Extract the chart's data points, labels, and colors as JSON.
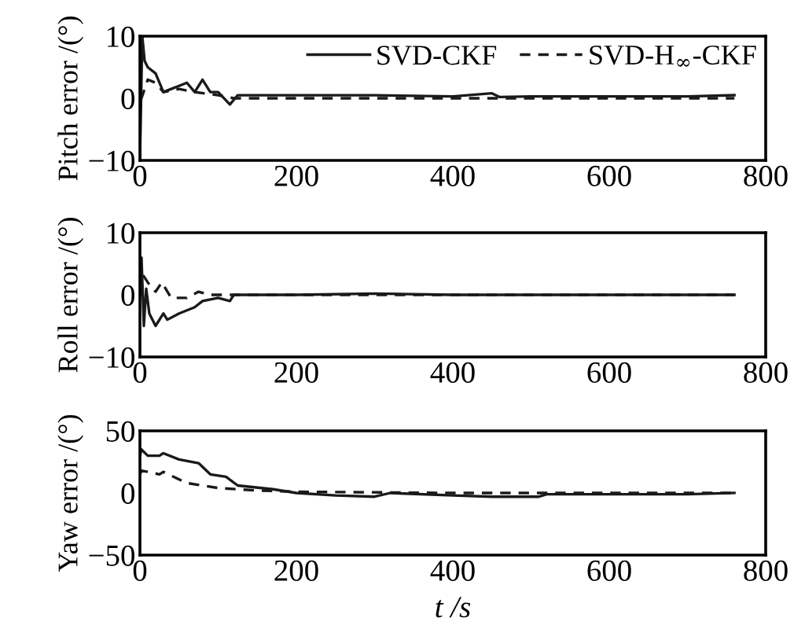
{
  "chart_data": [
    {
      "type": "line",
      "ylabel": "Pitch error /(°)",
      "xlim": [
        0,
        800
      ],
      "xticks": [
        0,
        200,
        400,
        600,
        800
      ],
      "ylim": [
        -10,
        10
      ],
      "yticks": [
        -10,
        0,
        10
      ],
      "legend": "top right",
      "grid": false,
      "series": [
        {
          "name": "SVD-CKF",
          "color": "#1a1a1a",
          "line_style": "solid",
          "x": [
            0,
            3,
            6,
            10,
            20,
            30,
            40,
            50,
            60,
            70,
            80,
            90,
            100,
            115,
            125,
            200,
            300,
            400,
            450,
            460,
            500,
            600,
            700,
            760
          ],
          "values": [
            -10,
            10,
            6,
            5,
            4,
            1,
            1.5,
            2,
            2.5,
            1,
            3,
            1,
            1,
            -1,
            0.5,
            0.5,
            0.5,
            0.3,
            0.8,
            0.2,
            0.3,
            0.3,
            0.3,
            0.5
          ]
        },
        {
          "name": "SVD-H$_{∞}$-CKF",
          "color": "#1a1a1a",
          "line_style": "dashed",
          "x": [
            0,
            2,
            10,
            20,
            30,
            50,
            70,
            100,
            120,
            200,
            400,
            600,
            760
          ],
          "values": [
            0,
            0,
            3,
            2.5,
            1,
            1.5,
            1,
            0.5,
            0,
            0,
            0,
            0,
            0
          ]
        }
      ]
    },
    {
      "type": "line",
      "ylabel": "Roll error /(°)",
      "xlim": [
        0,
        800
      ],
      "xticks": [
        0,
        200,
        400,
        600,
        800
      ],
      "ylim": [
        -10,
        10
      ],
      "yticks": [
        -10,
        0,
        10
      ],
      "grid": false,
      "series": [
        {
          "color": "#1a1a1a",
          "line_style": "solid",
          "x": [
            0,
            2,
            5,
            8,
            12,
            20,
            30,
            35,
            50,
            70,
            80,
            100,
            115,
            120,
            200,
            300,
            400,
            500,
            600,
            700,
            760
          ],
          "values": [
            0,
            6,
            -5,
            1,
            -3,
            -5,
            -3,
            -4,
            -3,
            -2,
            -1,
            -0.5,
            -1,
            0,
            0,
            0.2,
            0,
            0,
            0,
            0,
            0
          ]
        },
        {
          "color": "#1a1a1a",
          "line_style": "dashed",
          "x": [
            0,
            5,
            10,
            20,
            28,
            40,
            60,
            75,
            90,
            200,
            400,
            600,
            760
          ],
          "values": [
            0,
            3,
            2,
            0.5,
            2,
            -0.5,
            -0.5,
            0.5,
            0,
            0,
            0,
            0,
            0
          ]
        }
      ]
    },
    {
      "type": "line",
      "ylabel": "Yaw error /(°)",
      "xlabel": "t /s",
      "xlim": [
        0,
        800
      ],
      "xticks": [
        0,
        200,
        400,
        600,
        800
      ],
      "ylim": [
        -50,
        50
      ],
      "yticks": [
        -50,
        0,
        50
      ],
      "grid": false,
      "series": [
        {
          "color": "#1a1a1a",
          "line_style": "solid",
          "x": [
            0,
            2,
            10,
            25,
            30,
            50,
            75,
            90,
            110,
            125,
            170,
            200,
            250,
            300,
            320,
            400,
            450,
            510,
            520,
            700,
            760
          ],
          "values": [
            30,
            35,
            30,
            30,
            32,
            27,
            24,
            15,
            13,
            6,
            3,
            0,
            -2,
            -3,
            0,
            -2,
            -3,
            -3,
            -1,
            -1,
            0
          ]
        },
        {
          "color": "#1a1a1a",
          "line_style": "dashed",
          "x": [
            0,
            2,
            25,
            30,
            60,
            100,
            150,
            200,
            400,
            600,
            760
          ],
          "values": [
            15,
            18,
            15,
            17,
            8,
            4,
            2,
            1,
            0,
            0,
            0
          ]
        }
      ]
    }
  ]
}
